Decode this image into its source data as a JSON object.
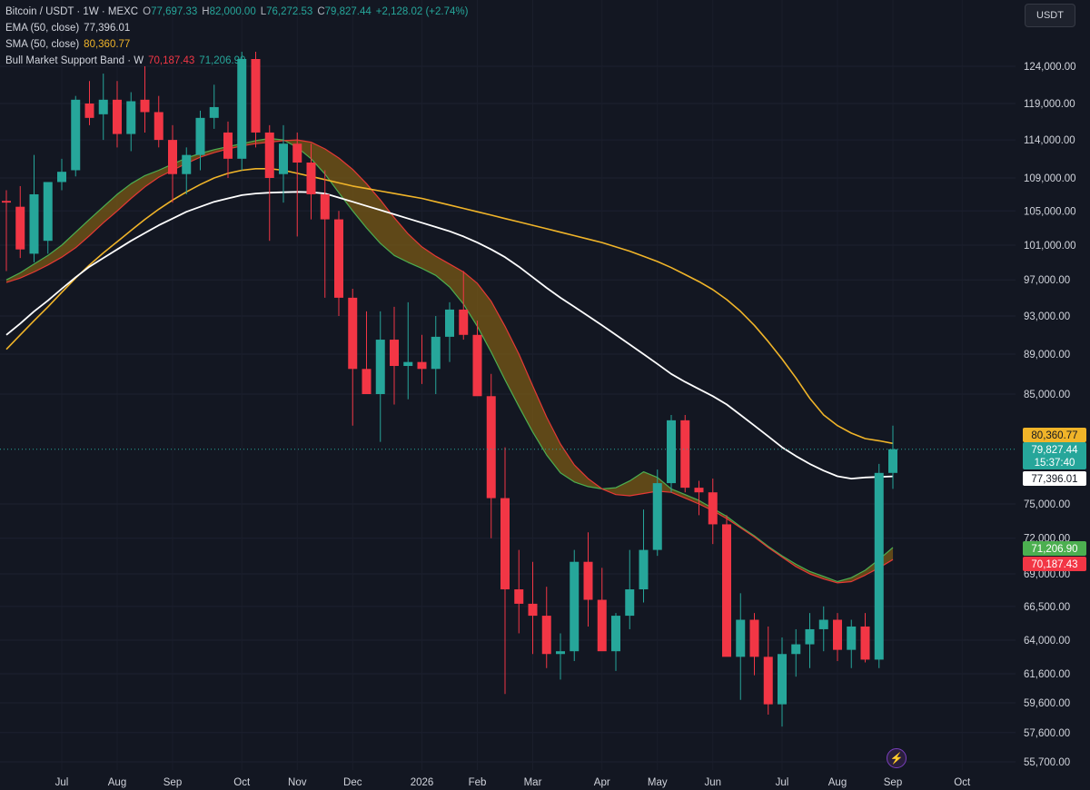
{
  "legend": {
    "symbol": "Bitcoin / USDT · 1W · MEXC",
    "o_label": "O",
    "o_value": "77,697.33",
    "h_label": "H",
    "h_value": "82,000.00",
    "l_label": "L",
    "l_value": "76,272.53",
    "c_label": "C",
    "c_value": "79,827.44",
    "change": "+2,128.02 (+2.74%)",
    "ema_label": "EMA (50, close)",
    "ema_value": "77,396.01",
    "sma_label": "SMA (50, close)",
    "sma_value": "80,360.77",
    "band_label": "Bull Market Support Band · W",
    "band_low": "70,187.43",
    "band_high": "71,206.90"
  },
  "currency_button": "USDT",
  "colors": {
    "up": "#26a69a",
    "down": "#f23645",
    "ema": "#ffffff",
    "sma": "#f0b429",
    "band_fill": "#7a5a16",
    "band_green": "#4caf50",
    "band_red": "#e53935",
    "background": "#131722"
  },
  "icons": {
    "lightning": "lightning-icon"
  },
  "chart_data": {
    "type": "candlestick",
    "interval": "1W",
    "price_axis": {
      "labels": [
        "124,000.00",
        "119,000.00",
        "114,000.00",
        "109,000.00",
        "105,000.00",
        "101,000.00",
        "97,000.00",
        "93,000.00",
        "89,000.00",
        "85,000.00",
        "75,000.00",
        "72,000.00",
        "69,000.00",
        "66,500.00",
        "64,000.00",
        "61,600.00",
        "59,600.00",
        "57,600.00",
        "55,700.00"
      ],
      "values": [
        124000,
        119000,
        114000,
        109000,
        105000,
        101000,
        97000,
        93000,
        89000,
        85000,
        75000,
        72000,
        69000,
        66500,
        64000,
        61600,
        59600,
        57600,
        55700
      ],
      "scale": "log"
    },
    "time_axis": {
      "labels": [
        "Jul",
        "Aug",
        "Sep",
        "Oct",
        "Nov",
        "Dec",
        "2026",
        "Feb",
        "Mar",
        "Apr",
        "May",
        "Jun",
        "Jul",
        "Aug",
        "Sep",
        "Oct"
      ],
      "index": [
        4,
        8,
        12,
        17,
        21,
        25,
        30,
        34,
        38,
        43,
        47,
        51,
        56,
        60,
        64,
        69
      ]
    },
    "price_labels": [
      {
        "name": "sma",
        "text": "80,360.77",
        "value": 80360.77
      },
      {
        "name": "close",
        "text": "79,827.44",
        "countdown": "15:37:40",
        "value": 79827.44
      },
      {
        "name": "ema",
        "text": "77,396.01",
        "value": 77396.01
      },
      {
        "name": "band-high",
        "text": "71,206.90",
        "value": 71206.9
      },
      {
        "name": "band-low",
        "text": "70,187.43",
        "value": 70187.43
      }
    ],
    "candles": [
      [
        106200,
        107500,
        98000,
        106000
      ],
      [
        105500,
        108000,
        99500,
        100500
      ],
      [
        100000,
        112000,
        99000,
        107000
      ],
      [
        101500,
        108000,
        100000,
        108500
      ],
      [
        108500,
        111500,
        107500,
        109800
      ],
      [
        110000,
        120000,
        109200,
        119500
      ],
      [
        119000,
        122000,
        116000,
        117000
      ],
      [
        117500,
        123000,
        114000,
        119500
      ],
      [
        119500,
        122000,
        113000,
        114800
      ],
      [
        114800,
        120500,
        112500,
        119300
      ],
      [
        119500,
        124000,
        115000,
        117800
      ],
      [
        117800,
        120000,
        113000,
        114000
      ],
      [
        114000,
        116000,
        106000,
        109500
      ],
      [
        109500,
        113000,
        107000,
        112000
      ],
      [
        112000,
        118000,
        110000,
        117000
      ],
      [
        117000,
        121500,
        115500,
        118500
      ],
      [
        115000,
        116500,
        109000,
        111500
      ],
      [
        111500,
        126000,
        110000,
        125000
      ],
      [
        125000,
        126000,
        113000,
        115000
      ],
      [
        115000,
        116000,
        101500,
        109000
      ],
      [
        109500,
        116000,
        106000,
        113500
      ],
      [
        113500,
        115000,
        102000,
        111000
      ],
      [
        111000,
        113500,
        104000,
        107000
      ],
      [
        107000,
        110000,
        95000,
        104000
      ],
      [
        104000,
        105000,
        93000,
        95000
      ],
      [
        95000,
        96000,
        82000,
        87500
      ],
      [
        87500,
        93500,
        85000,
        85000
      ],
      [
        85000,
        93500,
        80500,
        90500
      ],
      [
        90500,
        94000,
        84000,
        87800
      ],
      [
        87800,
        94500,
        84500,
        88200
      ],
      [
        88200,
        91000,
        86000,
        87500
      ],
      [
        87500,
        93000,
        85000,
        90800
      ],
      [
        90800,
        94500,
        88200,
        93700
      ],
      [
        93700,
        98000,
        90500,
        91000
      ],
      [
        91000,
        92500,
        85000,
        84800
      ],
      [
        84800,
        87000,
        72000,
        75500
      ],
      [
        75500,
        80000,
        60200,
        67800
      ],
      [
        67800,
        71000,
        64500,
        66700
      ],
      [
        66700,
        70000,
        63000,
        65800
      ],
      [
        65800,
        68000,
        62000,
        63000
      ],
      [
        63000,
        64500,
        61200,
        63200
      ],
      [
        63200,
        71000,
        62500,
        70000
      ],
      [
        70000,
        72500,
        65000,
        67000
      ],
      [
        67000,
        69500,
        63500,
        63200
      ],
      [
        63200,
        66000,
        61800,
        65800
      ],
      [
        65800,
        71000,
        64800,
        67800
      ],
      [
        67800,
        74500,
        66800,
        71000
      ],
      [
        71000,
        78000,
        70500,
        76800
      ],
      [
        76800,
        83000,
        76000,
        82500
      ],
      [
        82500,
        83000,
        76000,
        76400
      ],
      [
        76400,
        77000,
        74000,
        76000
      ],
      [
        76000,
        77200,
        71500,
        73200
      ],
      [
        73200,
        74000,
        63000,
        62800
      ],
      [
        62800,
        67500,
        59800,
        65500
      ],
      [
        65500,
        66000,
        61500,
        62800
      ],
      [
        62800,
        65000,
        58800,
        59500
      ],
      [
        59500,
        64200,
        58000,
        63000
      ],
      [
        63000,
        64800,
        61400,
        63700
      ],
      [
        63700,
        66000,
        62000,
        64800
      ],
      [
        64800,
        66500,
        63200,
        65500
      ],
      [
        65500,
        66000,
        62500,
        63300
      ],
      [
        63300,
        65500,
        62000,
        65000
      ],
      [
        65000,
        66000,
        62400,
        62600
      ],
      [
        62600,
        78500,
        62000,
        77700
      ],
      [
        77700,
        82000,
        76300,
        79827.44
      ]
    ],
    "ema": [
      91000,
      92200,
      93500,
      94700,
      96000,
      97300,
      98500,
      99500,
      100500,
      101500,
      102400,
      103300,
      104100,
      104900,
      105500,
      106100,
      106500,
      106900,
      107100,
      107200,
      107250,
      107300,
      107250,
      107100,
      106600,
      106100,
      105600,
      105100,
      104600,
      104100,
      103600,
      103100,
      102600,
      102000,
      101300,
      100500,
      99600,
      98500,
      97300,
      96100,
      95000,
      94000,
      93000,
      92000,
      91000,
      90000,
      89000,
      88000,
      87000,
      86200,
      85500,
      84800,
      84000,
      83000,
      82000,
      81000,
      80000,
      79200,
      78500,
      77900,
      77400,
      77200,
      77300,
      77350,
      77396.01
    ],
    "sma": [
      89500,
      91000,
      92500,
      94000,
      95600,
      97200,
      98700,
      100100,
      101400,
      102700,
      104000,
      105200,
      106300,
      107300,
      108200,
      109000,
      109600,
      110000,
      110200,
      110200,
      110000,
      109600,
      109200,
      108800,
      108400,
      108000,
      107700,
      107400,
      107100,
      106800,
      106500,
      106100,
      105700,
      105300,
      104900,
      104500,
      104100,
      103700,
      103300,
      102900,
      102500,
      102100,
      101700,
      101300,
      100800,
      100300,
      99700,
      99100,
      98400,
      97600,
      96800,
      95900,
      94800,
      93500,
      92000,
      90300,
      88500,
      86600,
      84600,
      83000,
      82000,
      81300,
      80800,
      80600,
      80360.77
    ],
    "band_green": [
      97000,
      97800,
      98800,
      99800,
      101000,
      102500,
      104000,
      105500,
      107000,
      108300,
      109300,
      110000,
      110800,
      111600,
      112200,
      112700,
      113100,
      113500,
      113900,
      114200,
      114000,
      113000,
      111500,
      109500,
      107200,
      105000,
      103000,
      101200,
      99800,
      99000,
      98300,
      97500,
      96200,
      94300,
      91900,
      89200,
      86400,
      83800,
      81400,
      79300,
      77700,
      76900,
      76500,
      76300,
      76400,
      77000,
      77800,
      77300,
      76300,
      75800,
      75300,
      74600,
      73900,
      73000,
      72200,
      71300,
      70500,
      69800,
      69200,
      68800,
      68400,
      68700,
      69300,
      70200,
      71206.9
    ],
    "band_red": [
      96700,
      97200,
      97900,
      98700,
      99600,
      100700,
      102100,
      103600,
      105000,
      106500,
      107900,
      109100,
      110000,
      110900,
      111700,
      112300,
      112800,
      113200,
      113500,
      113700,
      113900,
      114000,
      113700,
      112800,
      111600,
      110100,
      108300,
      106300,
      104200,
      102300,
      100800,
      99700,
      98800,
      97900,
      96600,
      94600,
      91900,
      89000,
      85800,
      82800,
      80300,
      78400,
      77200,
      76300,
      75800,
      75700,
      75900,
      76100,
      76000,
      75500,
      75000,
      74400,
      73700,
      72900,
      72100,
      71200,
      70400,
      69600,
      69000,
      68600,
      68300,
      68400,
      68900,
      69500,
      70187.43
    ]
  }
}
